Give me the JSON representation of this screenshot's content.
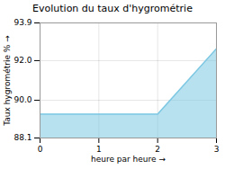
{
  "chart_data": {
    "type": "area",
    "title": "Evolution du taux d'hygrométrie",
    "xlabel": "heure par heure",
    "ylabel": "Taux hygrométrie %",
    "x": [
      0,
      1,
      2,
      3
    ],
    "values": [
      89.3,
      89.3,
      89.3,
      92.6
    ],
    "color": "#7ec8e3",
    "xlim": [
      0,
      3
    ],
    "xticks": [
      0,
      1,
      2,
      3
    ],
    "ylim": [
      88.1,
      93.9
    ],
    "yticks": [
      88.1,
      {
        "value": 90.0,
        "label": "90.0"
      },
      {
        "value": 92.0,
        "label": "92.0"
      },
      93.9
    ],
    "grid": true
  }
}
